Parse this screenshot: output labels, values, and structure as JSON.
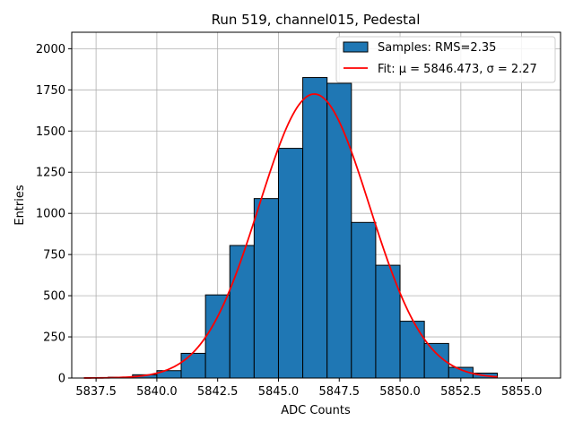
{
  "chart_data": {
    "type": "bar",
    "title": "Run 519, channel015, Pedestal",
    "xlabel": "ADC Counts",
    "ylabel": "Entries",
    "xlim": [
      5836.5,
      5856.6
    ],
    "ylim": [
      0,
      2100
    ],
    "grid": true,
    "legend_position": "top-right",
    "x_ticks": [
      5837.5,
      5840.0,
      5842.5,
      5845.0,
      5847.5,
      5850.0,
      5852.5,
      5855.0
    ],
    "x_tick_labels": [
      "5837.5",
      "5840.0",
      "5842.5",
      "5845.0",
      "5847.5",
      "5850.0",
      "5852.5",
      "5855.0"
    ],
    "y_ticks": [
      0,
      250,
      500,
      750,
      1000,
      1250,
      1500,
      1750,
      2000
    ],
    "y_tick_labels": [
      "0",
      "250",
      "500",
      "750",
      "1000",
      "1250",
      "1500",
      "1750",
      "2000"
    ],
    "histogram": {
      "name": "Samples: RMS=2.35",
      "color": "#1f77b4",
      "edgecolor": "#000000",
      "bin_width": 1,
      "bin_starts": [
        5838,
        5839,
        5840,
        5841,
        5842,
        5843,
        5844,
        5845,
        5846,
        5847,
        5848,
        5849,
        5850,
        5851,
        5852,
        5853
      ],
      "values": [
        5,
        20,
        45,
        150,
        505,
        805,
        1090,
        1395,
        1825,
        1790,
        945,
        685,
        345,
        210,
        65,
        30
      ]
    },
    "fit": {
      "name": "Fit: μ = 5846.473, σ = 2.27",
      "color": "#ff0000",
      "mu": 5846.473,
      "sigma": 2.27,
      "amplitude": 1725,
      "x_range": [
        5837,
        5854
      ]
    }
  }
}
